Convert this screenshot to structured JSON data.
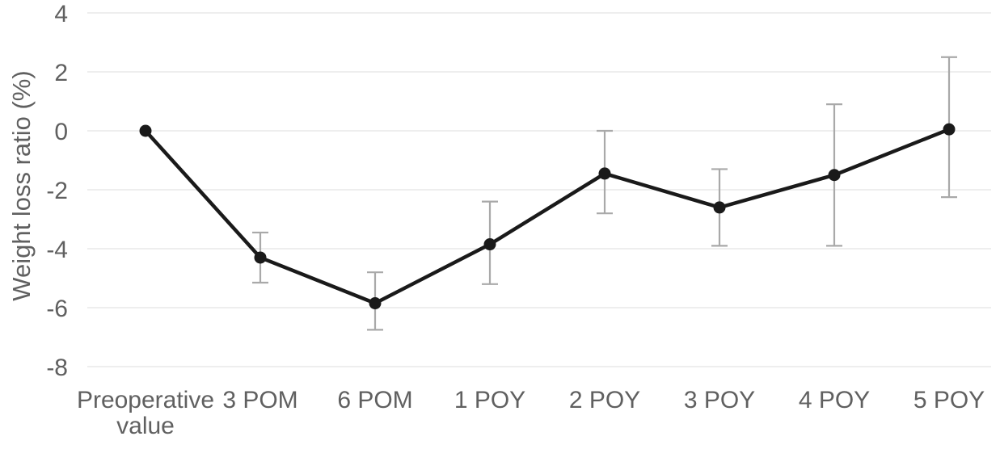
{
  "figure": {
    "background": "#ffffff"
  },
  "chart_data": {
    "type": "line",
    "title": "",
    "xlabel": "",
    "ylabel": "Weight loss ratio (%)",
    "categories": [
      "Preoperative value",
      "3 POM",
      "6 POM",
      "1 POY",
      "2 POY",
      "3 POY",
      "4 POY",
      "5 POY"
    ],
    "series": [
      {
        "values": [
          0,
          -4.3,
          -5.85,
          -3.85,
          -1.45,
          -2.6,
          -1.5,
          0.05
        ],
        "error_high": [
          null,
          -3.45,
          -4.8,
          -2.4,
          0,
          -1.3,
          0.9,
          2.5
        ],
        "error_low": [
          null,
          -5.15,
          -6.75,
          -5.2,
          -2.8,
          -3.9,
          -3.9,
          -2.25
        ]
      }
    ],
    "ylim": [
      -8,
      4
    ],
    "yticks": [
      4,
      2,
      0,
      -2,
      -4,
      -6,
      -8
    ],
    "grid": "horizontal",
    "legend_position": "none",
    "marker": "filled-circle",
    "colors": {
      "line": "#1a1a1a",
      "marker": "#1a1a1a",
      "error_bar": "#a9a9a9",
      "gridline": "#eeeeee",
      "text": "#606060",
      "background": "#ffffff"
    }
  }
}
